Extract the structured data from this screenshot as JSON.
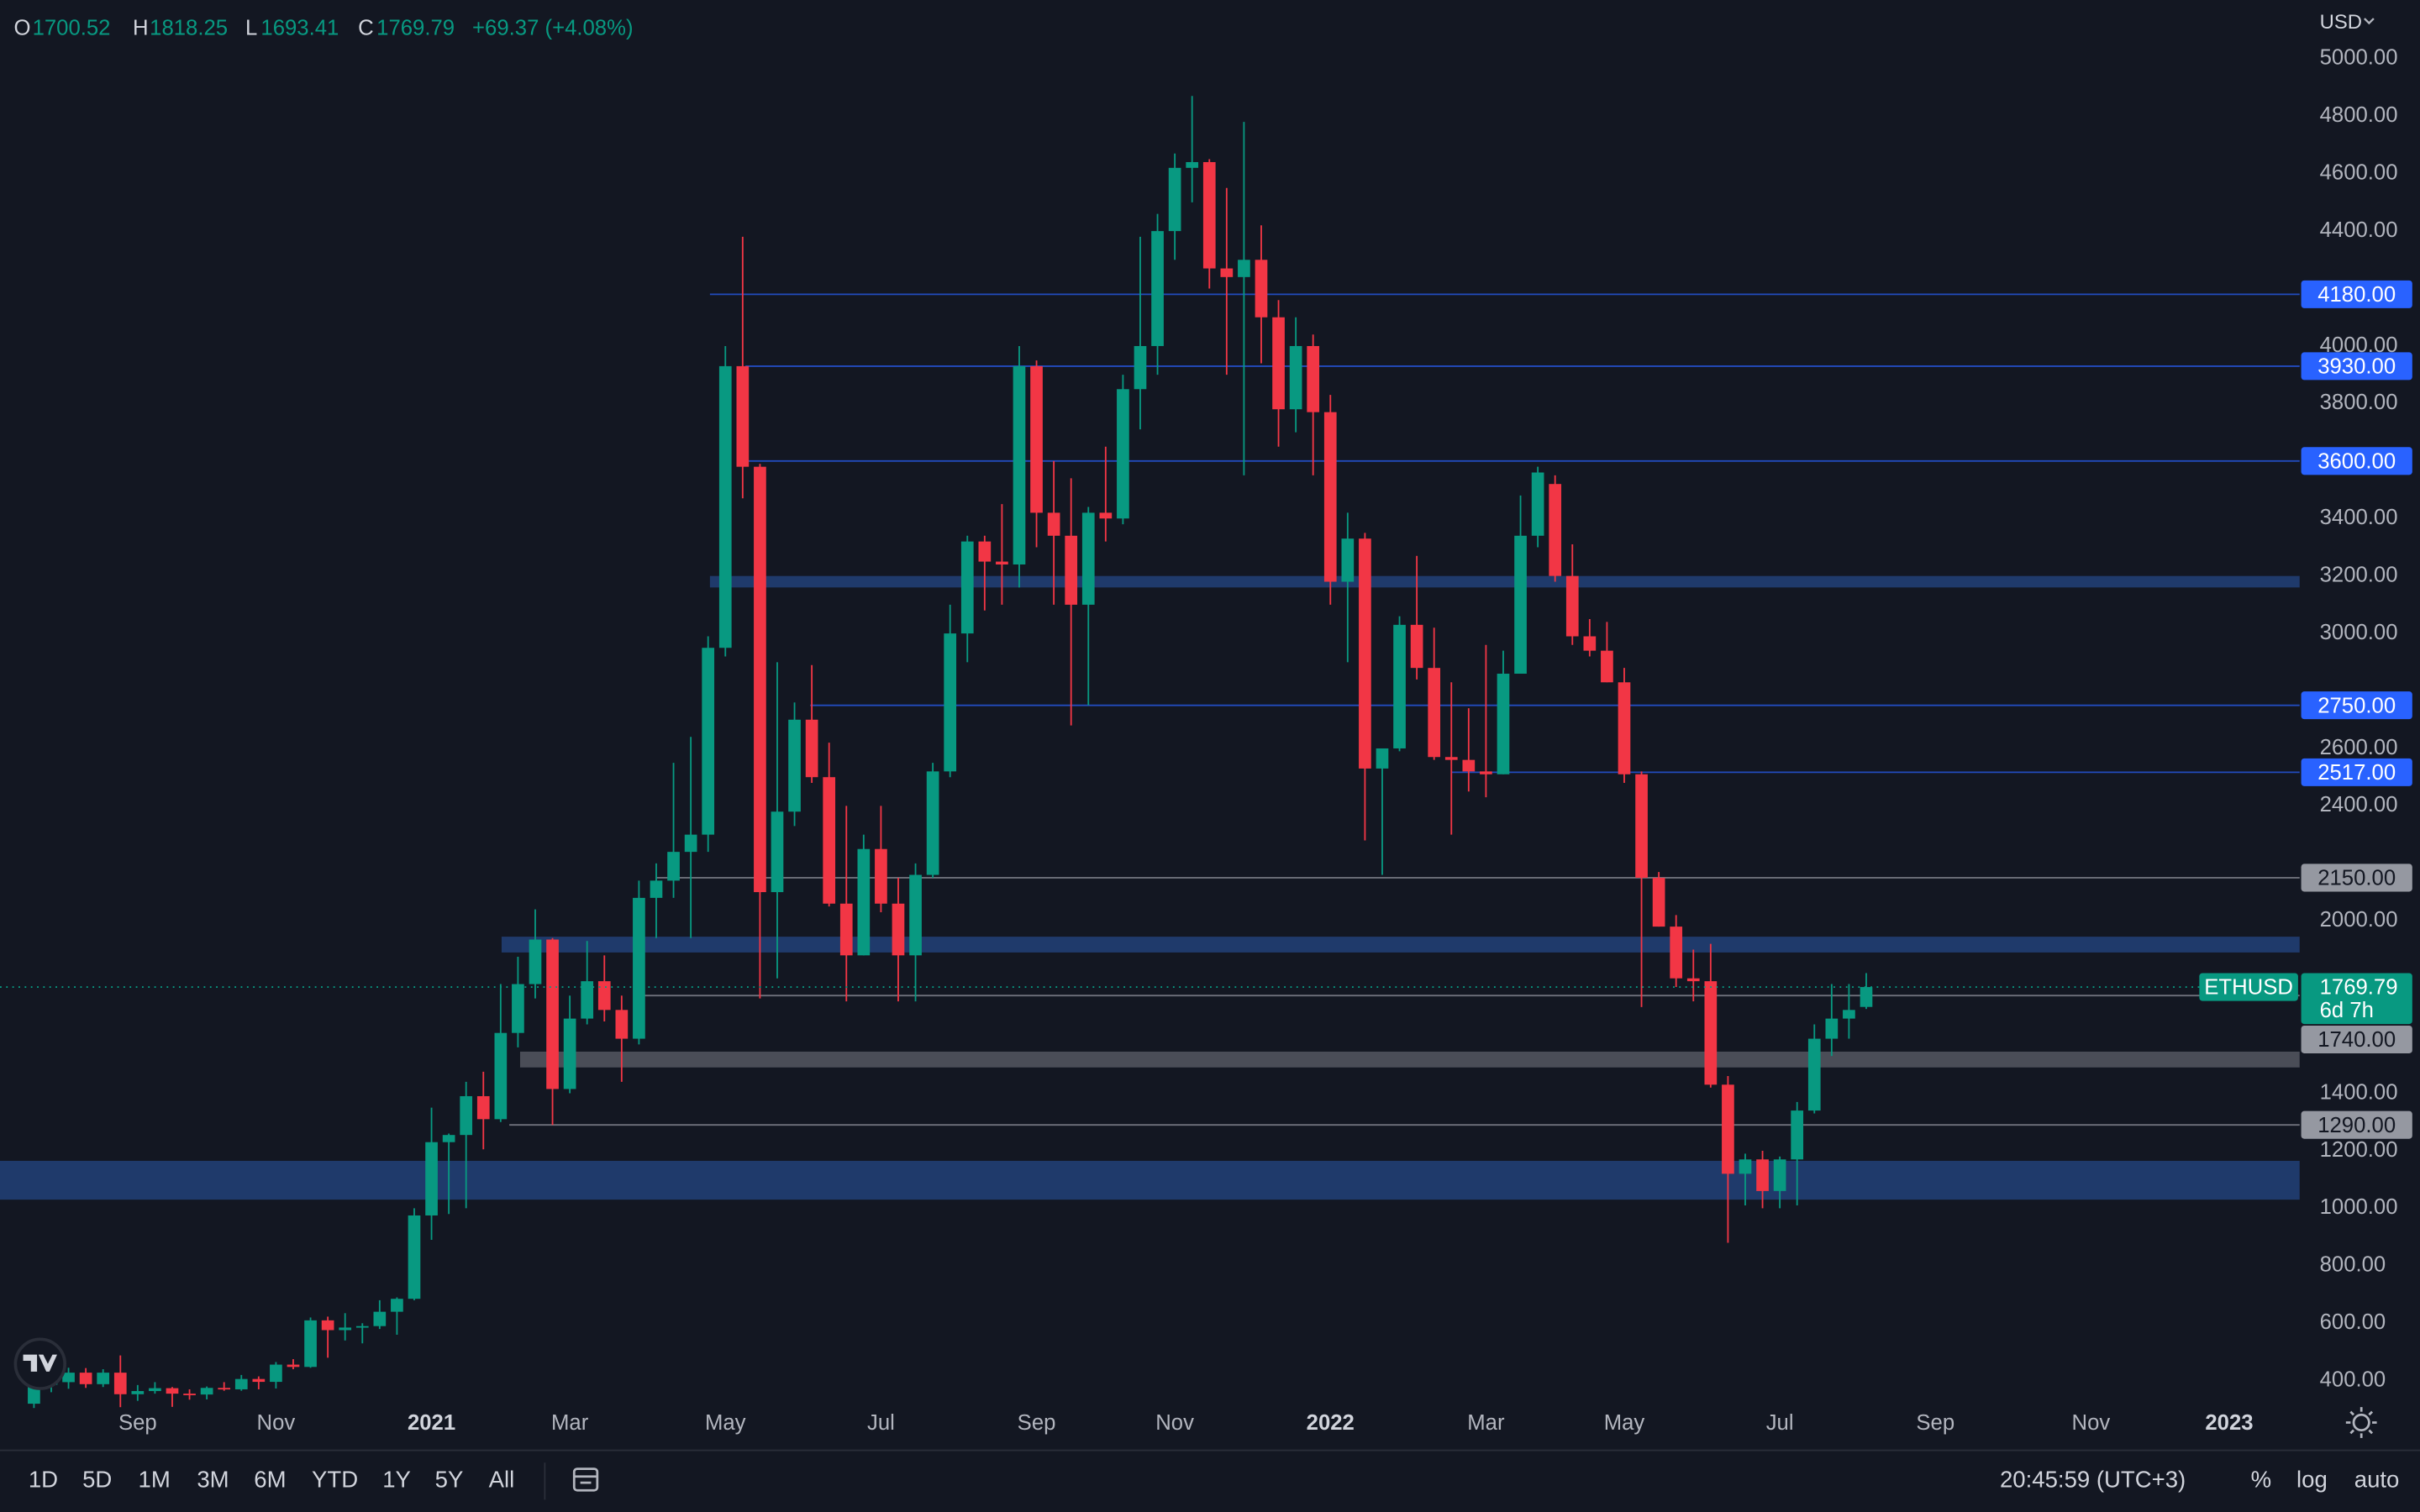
{
  "chart_data": {
    "type": "candlestick",
    "symbol": "ETHUSD",
    "currency": "USD",
    "legend": {
      "o_label": "O",
      "open": 1700.52,
      "h_label": "H",
      "high": 1818.25,
      "l_label": "L",
      "low": 1693.41,
      "c_label": "C",
      "close": 1769.79,
      "change": "+69.37 (+4.08%)"
    },
    "categories": [
      null,
      null,
      null,
      null,
      null,
      null,
      "Sep",
      null,
      null,
      null,
      null,
      null,
      null,
      null,
      "Nov",
      null,
      null,
      null,
      null,
      null,
      null,
      null,
      null,
      "2021",
      null,
      null,
      null,
      null,
      null,
      null,
      null,
      "Mar",
      null,
      null,
      null,
      null,
      null,
      null,
      null,
      null,
      "May",
      null,
      null,
      null,
      null,
      null,
      null,
      null,
      null,
      "Jul",
      null,
      null,
      null,
      null,
      null,
      null,
      null,
      null,
      "Sep",
      null,
      null,
      null,
      null,
      null,
      null,
      null,
      "Nov",
      null,
      null,
      null,
      null,
      null,
      null,
      null,
      null,
      "2022",
      null,
      null,
      null,
      null,
      null,
      null,
      null,
      null,
      "Mar",
      null,
      null,
      null,
      null,
      null,
      null,
      null,
      "May",
      null,
      null,
      null,
      null,
      null,
      null,
      null,
      null,
      "Jul",
      null,
      null,
      null,
      null,
      null,
      null,
      null,
      null,
      "Sep",
      null,
      null,
      null,
      null,
      null,
      null,
      null,
      null,
      "Nov",
      null,
      null,
      null,
      null,
      null,
      null,
      null,
      "2023",
      null,
      null,
      null,
      null
    ],
    "open": [
      320,
      386,
      395,
      428,
      388,
      428,
      353,
      364,
      374,
      355,
      352,
      375,
      370,
      406,
      396,
      456,
      448,
      610,
      576,
      585,
      590,
      640,
      685,
      975,
      1230,
      1255,
      1390,
      1310,
      1610,
      1780,
      1935,
      1415,
      1660,
      1790,
      1690,
      1590,
      2080,
      2140,
      2240,
      2300,
      2950,
      3930,
      3580,
      2100,
      2380,
      2700,
      2500,
      2060,
      1880,
      2250,
      2060,
      1880,
      2160,
      2520,
      3000,
      3320,
      3250,
      3240,
      3930,
      3420,
      3340,
      3100,
      3420,
      3400,
      3850,
      4000,
      4400,
      4620,
      4640,
      4270,
      4240,
      4300,
      4100,
      3780,
      4000,
      3770,
      3180,
      3330,
      2530,
      2600,
      3030,
      2880,
      2570,
      2560,
      2520,
      2510,
      2860,
      3340,
      3520,
      3200,
      2990,
      2940,
      2830,
      2510,
      2150,
      1980,
      1800,
      1790,
      1430,
      1120,
      1170,
      1060,
      1170,
      1340,
      1590,
      1660,
      1700.52,
      null,
      null,
      null,
      null,
      null,
      null,
      null,
      null,
      null,
      null,
      null,
      null,
      null,
      null,
      null,
      null,
      null,
      null,
      null,
      null,
      null,
      null,
      null,
      null,
      null
    ],
    "high": [
      415,
      414,
      445,
      444,
      440,
      488,
      385,
      395,
      378,
      370,
      380,
      395,
      420,
      415,
      465,
      475,
      620,
      623,
      635,
      600,
      680,
      690,
      1000,
      1350,
      1260,
      1440,
      1475,
      1780,
      1875,
      2040,
      1940,
      1740,
      1930,
      1880,
      1740,
      2140,
      2200,
      2550,
      2640,
      2990,
      4000,
      4380,
      3590,
      2900,
      2760,
      2890,
      2620,
      2400,
      2300,
      2400,
      2150,
      2200,
      2550,
      3100,
      3340,
      3340,
      3450,
      4000,
      3950,
      3600,
      3540,
      3440,
      3650,
      3900,
      4380,
      4460,
      4670,
      4870,
      4650,
      4550,
      4780,
      4420,
      4160,
      4100,
      4040,
      3830,
      3420,
      3350,
      2600,
      3060,
      3270,
      3020,
      2830,
      2740,
      2960,
      2940,
      3480,
      3580,
      3550,
      3310,
      3050,
      3040,
      2880,
      2520,
      2170,
      2020,
      1900,
      1920,
      1460,
      1190,
      1200,
      1180,
      1370,
      1640,
      1780,
      1780,
      1818.25,
      null,
      null,
      null,
      null,
      null,
      null,
      null,
      null,
      null,
      null,
      null,
      null,
      null,
      null,
      null,
      null,
      null,
      null,
      null,
      null,
      null,
      null,
      null,
      null,
      null
    ],
    "low": [
      305,
      360,
      372,
      375,
      378,
      308,
      330,
      355,
      309,
      334,
      335,
      365,
      365,
      370,
      373,
      440,
      445,
      480,
      540,
      530,
      580,
      560,
      680,
      890,
      980,
      1000,
      1205,
      1300,
      1560,
      1730,
      1290,
      1400,
      1640,
      1650,
      1440,
      1570,
      1940,
      2080,
      1940,
      2240,
      2920,
      3470,
      1730,
      1800,
      2330,
      2480,
      2050,
      1720,
      1880,
      2030,
      1720,
      1720,
      2150,
      2500,
      2900,
      3080,
      3100,
      3160,
      3300,
      3100,
      2680,
      2750,
      3320,
      3380,
      3710,
      3900,
      4300,
      4500,
      4200,
      3900,
      3550,
      3940,
      3650,
      3700,
      3550,
      3100,
      2900,
      2280,
      2160,
      2590,
      2840,
      2560,
      2300,
      2450,
      2430,
      2510,
      2860,
      3300,
      3180,
      2960,
      2920,
      2830,
      2480,
      1700,
      1980,
      1770,
      1720,
      1420,
      880,
      1010,
      1000,
      1000,
      1010,
      1330,
      1530,
      1590,
      1693.41,
      null,
      null,
      null,
      null,
      null,
      null,
      null,
      null,
      null,
      null,
      null,
      null,
      null,
      null,
      null,
      null,
      null,
      null,
      null,
      null,
      null,
      null,
      null,
      null,
      null
    ],
    "close": [
      386,
      395,
      428,
      388,
      428,
      353,
      364,
      374,
      355,
      352,
      375,
      370,
      406,
      396,
      456,
      448,
      610,
      576,
      585,
      590,
      640,
      685,
      975,
      1230,
      1255,
      1390,
      1310,
      1610,
      1780,
      1935,
      1415,
      1660,
      1790,
      1690,
      1590,
      2080,
      2140,
      2240,
      2300,
      2950,
      3930,
      3580,
      2100,
      2380,
      2700,
      2500,
      2060,
      1880,
      2250,
      2060,
      1880,
      2160,
      2520,
      3000,
      3320,
      3250,
      3240,
      3930,
      3420,
      3340,
      3100,
      3420,
      3400,
      3850,
      4000,
      4400,
      4620,
      4640,
      4270,
      4240,
      4300,
      4100,
      3780,
      4000,
      3770,
      3180,
      3330,
      2530,
      2600,
      3030,
      2880,
      2570,
      2560,
      2520,
      2510,
      2860,
      3340,
      3560,
      3200,
      2990,
      2940,
      2830,
      2510,
      2150,
      1980,
      1800,
      1790,
      1430,
      1120,
      1170,
      1060,
      1170,
      1340,
      1590,
      1660,
      1690,
      1769.79,
      null,
      null,
      null,
      null,
      null,
      null,
      null,
      null,
      null,
      null,
      null,
      null,
      null,
      null,
      null,
      null,
      null,
      null,
      null,
      null,
      null,
      null,
      null,
      null,
      null
    ],
    "up_color": "#089981",
    "down_color": "#f23645",
    "grid": false,
    "ylim": [
      319,
      5204
    ],
    "yticks": [
      {
        "value": 5000,
        "label": "5000.00"
      },
      {
        "value": 4800,
        "label": "4800.00"
      },
      {
        "value": 4600,
        "label": "4600.00"
      },
      {
        "value": 4400,
        "label": "4400.00"
      },
      {
        "value": 4000,
        "label": "4000.00"
      },
      {
        "value": 3800,
        "label": "3800.00"
      },
      {
        "value": 3400,
        "label": "3400.00"
      },
      {
        "value": 3200,
        "label": "3200.00"
      },
      {
        "value": 3000,
        "label": "3000.00"
      },
      {
        "value": 2600,
        "label": "2600.00"
      },
      {
        "value": 2400,
        "label": "2400.00"
      },
      {
        "value": 2000,
        "label": "2000.00"
      },
      {
        "value": 1400,
        "label": "1400.00"
      },
      {
        "value": 1200,
        "label": "1200.00"
      },
      {
        "value": 1000,
        "label": "1000.00"
      },
      {
        "value": 800,
        "label": "800.00"
      },
      {
        "value": 600,
        "label": "600.00"
      },
      {
        "value": 400,
        "label": "400.00"
      }
    ],
    "levels": [
      {
        "value": 4180,
        "label": "4180.00",
        "color": "#2962ff"
      },
      {
        "value": 3930,
        "label": "3930.00",
        "color": "#2962ff"
      },
      {
        "value": 3600,
        "label": "3600.00",
        "color": "#2962ff"
      },
      {
        "value": 2750,
        "label": "2750.00",
        "color": "#2962ff"
      },
      {
        "value": 2517,
        "label": "2517.00",
        "color": "#2962ff"
      },
      {
        "value": 2150,
        "label": "2150.00",
        "color": "#9598a1"
      },
      {
        "value": 1740,
        "label": "1740.00",
        "color": "#9598a1"
      },
      {
        "value": 1290,
        "label": "1290.00",
        "color": "#9598a1"
      }
    ],
    "zones": [
      {
        "range": [
          3160,
          3200
        ],
        "color": "#1f3a6b"
      },
      {
        "range": [
          1890,
          1945
        ],
        "color": "#1f3a6b"
      },
      {
        "range": [
          1490,
          1545
        ],
        "color": "#4a4d57"
      },
      {
        "range": [
          1030,
          1165
        ],
        "color": "#1f3a6b"
      }
    ],
    "last_price": {
      "value": 1769.79,
      "countdown": "6d 7h"
    }
  },
  "toolbar": {
    "ranges": [
      "1D",
      "5D",
      "1M",
      "3M",
      "6M",
      "YTD",
      "1Y",
      "5Y",
      "All"
    ],
    "time": "20:45:59 (UTC+3)",
    "options": [
      "%",
      "log",
      "auto"
    ]
  }
}
